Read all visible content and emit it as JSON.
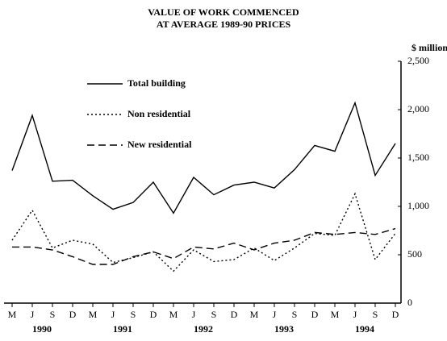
{
  "chart_data": {
    "type": "line",
    "title": "VALUE OF WORK COMMENCED",
    "subtitle": "AT AVERAGE 1989-90 PRICES",
    "y_label": "$ million",
    "categories": [
      "M",
      "J",
      "S",
      "D",
      "M",
      "J",
      "S",
      "D",
      "M",
      "J",
      "S",
      "D",
      "M",
      "J",
      "S",
      "D",
      "M",
      "J",
      "S",
      "D"
    ],
    "year_labels": [
      "1990",
      "1991",
      "1992",
      "1993",
      "1994"
    ],
    "series": [
      {
        "name": "Total building",
        "color": "#000000",
        "dash": "solid",
        "values": [
          1370,
          1940,
          1260,
          1270,
          1110,
          970,
          1040,
          1250,
          930,
          1300,
          1120,
          1220,
          1250,
          1190,
          1380,
          1630,
          1570,
          2070,
          1320,
          1650
        ]
      },
      {
        "name": "Non residential",
        "color": "#000000",
        "dash": "dotted",
        "values": [
          650,
          960,
          570,
          650,
          610,
          420,
          470,
          530,
          330,
          550,
          430,
          450,
          570,
          440,
          570,
          720,
          700,
          1130,
          450,
          720
        ]
      },
      {
        "name": "New residential",
        "color": "#000000",
        "dash": "dashed",
        "values": [
          580,
          580,
          550,
          480,
          400,
          400,
          480,
          530,
          460,
          580,
          560,
          620,
          550,
          620,
          650,
          730,
          710,
          730,
          710,
          770
        ]
      }
    ],
    "ylim": [
      0,
      2500
    ],
    "yticks": [
      0,
      500,
      {
        "value": 1000,
        "label": "1,000"
      },
      {
        "value": 1500,
        "label": "1,500"
      },
      {
        "value": 2000,
        "label": "2,000"
      },
      {
        "value": 2500,
        "label": "2,500"
      }
    ],
    "axis_side": "right",
    "grid": false
  }
}
